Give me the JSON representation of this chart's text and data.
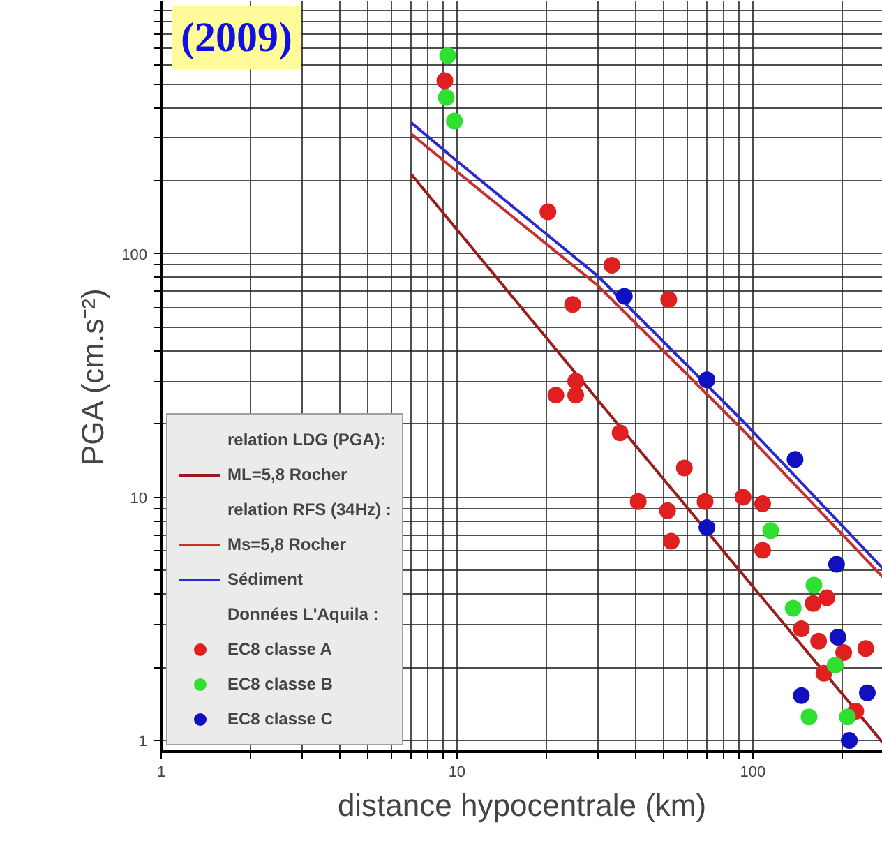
{
  "chart_data": {
    "type": "scatter",
    "title": "(2009)",
    "xlabel": "distance hypocentrale (km)",
    "ylabel": "PGA (cm.s⁻²)",
    "log": "xy",
    "grid": true,
    "legend": "bottom left",
    "marker": "circle",
    "line_style": "solid",
    "legend_title": "relation LDG (PGA):",
    "annotations": [
      "relation RFS (34Hz) :",
      "Données L'Aquila :"
    ],
    "xlim": [
      1,
      275
    ],
    "ylim": [
      0.9,
      1100
    ],
    "xticks": [
      1,
      {
        "value": 2,
        "label": null
      },
      {
        "value": 3,
        "label": null
      },
      {
        "value": 4,
        "label": null
      },
      {
        "value": 5,
        "label": null
      },
      {
        "value": 6,
        "label": null
      },
      {
        "value": 7,
        "label": null
      },
      {
        "value": 8,
        "label": null
      },
      {
        "value": 9,
        "label": null
      },
      10,
      {
        "value": 20,
        "label": null
      },
      {
        "value": 30,
        "label": null
      },
      {
        "value": 40,
        "label": null
      },
      {
        "value": 50,
        "label": null
      },
      {
        "value": 60,
        "label": null
      },
      {
        "value": 70,
        "label": null
      },
      {
        "value": 80,
        "label": null
      },
      {
        "value": 90,
        "label": null
      },
      100,
      {
        "value": 200,
        "label": null
      }
    ],
    "yticks": [
      1,
      {
        "value": 2,
        "label": null
      },
      {
        "value": 3,
        "label": null
      },
      {
        "value": 4,
        "label": null
      },
      {
        "value": 5,
        "label": null
      },
      {
        "value": 6,
        "label": null
      },
      {
        "value": 7,
        "label": null
      },
      {
        "value": 8,
        "label": null
      },
      {
        "value": 9,
        "label": null
      },
      10,
      {
        "value": 20,
        "label": null
      },
      {
        "value": 30,
        "label": null
      },
      {
        "value": 40,
        "label": null
      },
      {
        "value": 50,
        "label": null
      },
      {
        "value": 60,
        "label": null
      },
      {
        "value": 70,
        "label": null
      },
      {
        "value": 80,
        "label": null
      },
      {
        "value": 90,
        "label": null
      },
      100,
      {
        "value": 200,
        "label": null
      },
      {
        "value": 300,
        "label": null
      },
      {
        "value": 400,
        "label": null
      },
      {
        "value": 500,
        "label": null
      },
      {
        "value": 600,
        "label": null
      },
      {
        "value": 700,
        "label": null
      },
      {
        "value": 800,
        "label": null
      },
      {
        "value": 900,
        "label": null
      },
      {
        "value": 1000,
        "label": null
      }
    ],
    "series": [
      {
        "name": "ML=5,8 Rocher",
        "type": "line",
        "marker": "none",
        "color": "#9b1c1c",
        "x": [
          7,
          10,
          30,
          100,
          275
        ],
        "values": [
          213,
          126,
          25,
          4.3,
          0.98
        ]
      },
      {
        "name": "Ms=5,8 Rocher",
        "type": "line",
        "marker": "none",
        "color": "#c83030",
        "x": [
          7,
          10,
          30,
          91,
          275
        ],
        "values": [
          312,
          218,
          74,
          19.3,
          4.7
        ]
      },
      {
        "name": "Sédiment",
        "type": "line",
        "marker": "none",
        "color": "#2a2ad0",
        "x": [
          7,
          10,
          30,
          91,
          275
        ],
        "values": [
          347,
          241,
          81,
          21,
          5.1
        ]
      },
      {
        "name": "EC8 classe A",
        "type": "scatter",
        "color": "#e02020",
        "x": [
          9.1,
          20.3,
          33.4,
          52,
          24.6,
          21.6,
          25.2,
          25.2,
          35.6,
          58.7,
          41,
          51.5,
          69,
          92.7,
          108,
          53,
          108,
          160,
          178,
          146,
          167,
          203,
          241,
          174,
          223
        ],
        "values": [
          516,
          149,
          90,
          65,
          62,
          26.3,
          26.3,
          30,
          18.4,
          13.2,
          9.6,
          8.8,
          9.6,
          10,
          9.4,
          6.6,
          6.05,
          3.66,
          3.86,
          2.88,
          2.56,
          2.3,
          2.39,
          1.89,
          1.32
        ]
      },
      {
        "name": "EC8 classe B",
        "type": "scatter",
        "color": "#30e030",
        "x": [
          9.3,
          9.2,
          9.8,
          115,
          161,
          137,
          190,
          155,
          209
        ],
        "values": [
          655,
          440,
          352,
          7.3,
          4.35,
          3.5,
          2.04,
          1.25,
          1.25
        ]
      },
      {
        "name": "EC8 classe C",
        "type": "scatter",
        "color": "#1010c0",
        "x": [
          36.8,
          70,
          139,
          70,
          192,
          194,
          146,
          244,
          212
        ],
        "values": [
          67,
          30.4,
          14.3,
          7.5,
          5.3,
          2.66,
          1.53,
          1.57,
          1.0
        ]
      }
    ]
  }
}
